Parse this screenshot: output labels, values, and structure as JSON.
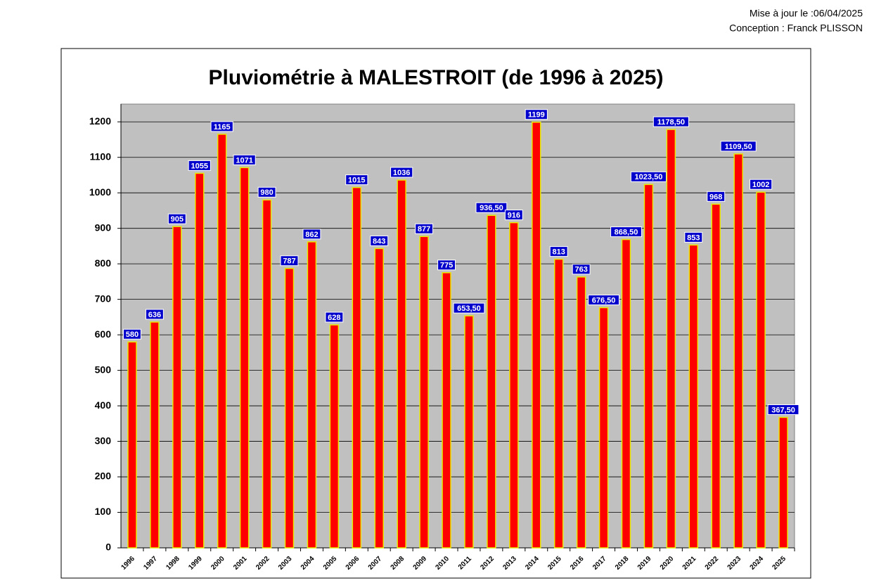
{
  "chart_data": {
    "type": "bar",
    "title": "Pluviométrie à MALESTROIT (de 1996 à 2025)",
    "annotations": [
      "Mise à jour le :06/04/2025",
      "Conception : Franck PLISSON"
    ],
    "categories": [
      "1996",
      "1997",
      "1998",
      "1999",
      "2000",
      "2001",
      "2002",
      "2003",
      "2004",
      "2005",
      "2006",
      "2007",
      "2008",
      "2009",
      "2010",
      "2011",
      "2012",
      "2013",
      "2014",
      "2015",
      "2016",
      "2017",
      "2018",
      "2019",
      "2020",
      "2021",
      "2022",
      "2023",
      "2024",
      "2025"
    ],
    "values": [
      580,
      636,
      905,
      1055,
      1165,
      1071,
      980,
      787,
      862,
      628,
      1015,
      843,
      1036,
      877,
      775,
      653.5,
      936.5,
      916,
      1199,
      813,
      763,
      676.5,
      868.5,
      1023.5,
      1178.5,
      853,
      968,
      1109.5,
      1002,
      367.5
    ],
    "value_labels": [
      "580",
      "636",
      "905",
      "1055",
      "1165",
      "1071",
      "980",
      "787",
      "862",
      "628",
      "1015",
      "843",
      "1036",
      "877",
      "775",
      "653,50",
      "936,50",
      "916",
      "1199",
      "813",
      "763",
      "676,50",
      "868,50",
      "1023,50",
      "1178,50",
      "853",
      "968",
      "1109,50",
      "1002",
      "367,50"
    ],
    "color": "#ff0000",
    "edge_color": "#e8e800",
    "label_color": "#0000cc",
    "background": "#c0c0c0",
    "ylim": [
      0,
      1250
    ],
    "yticks": [
      0,
      100,
      200,
      300,
      400,
      500,
      600,
      700,
      800,
      900,
      1000,
      1100,
      1200
    ],
    "grid": true
  }
}
